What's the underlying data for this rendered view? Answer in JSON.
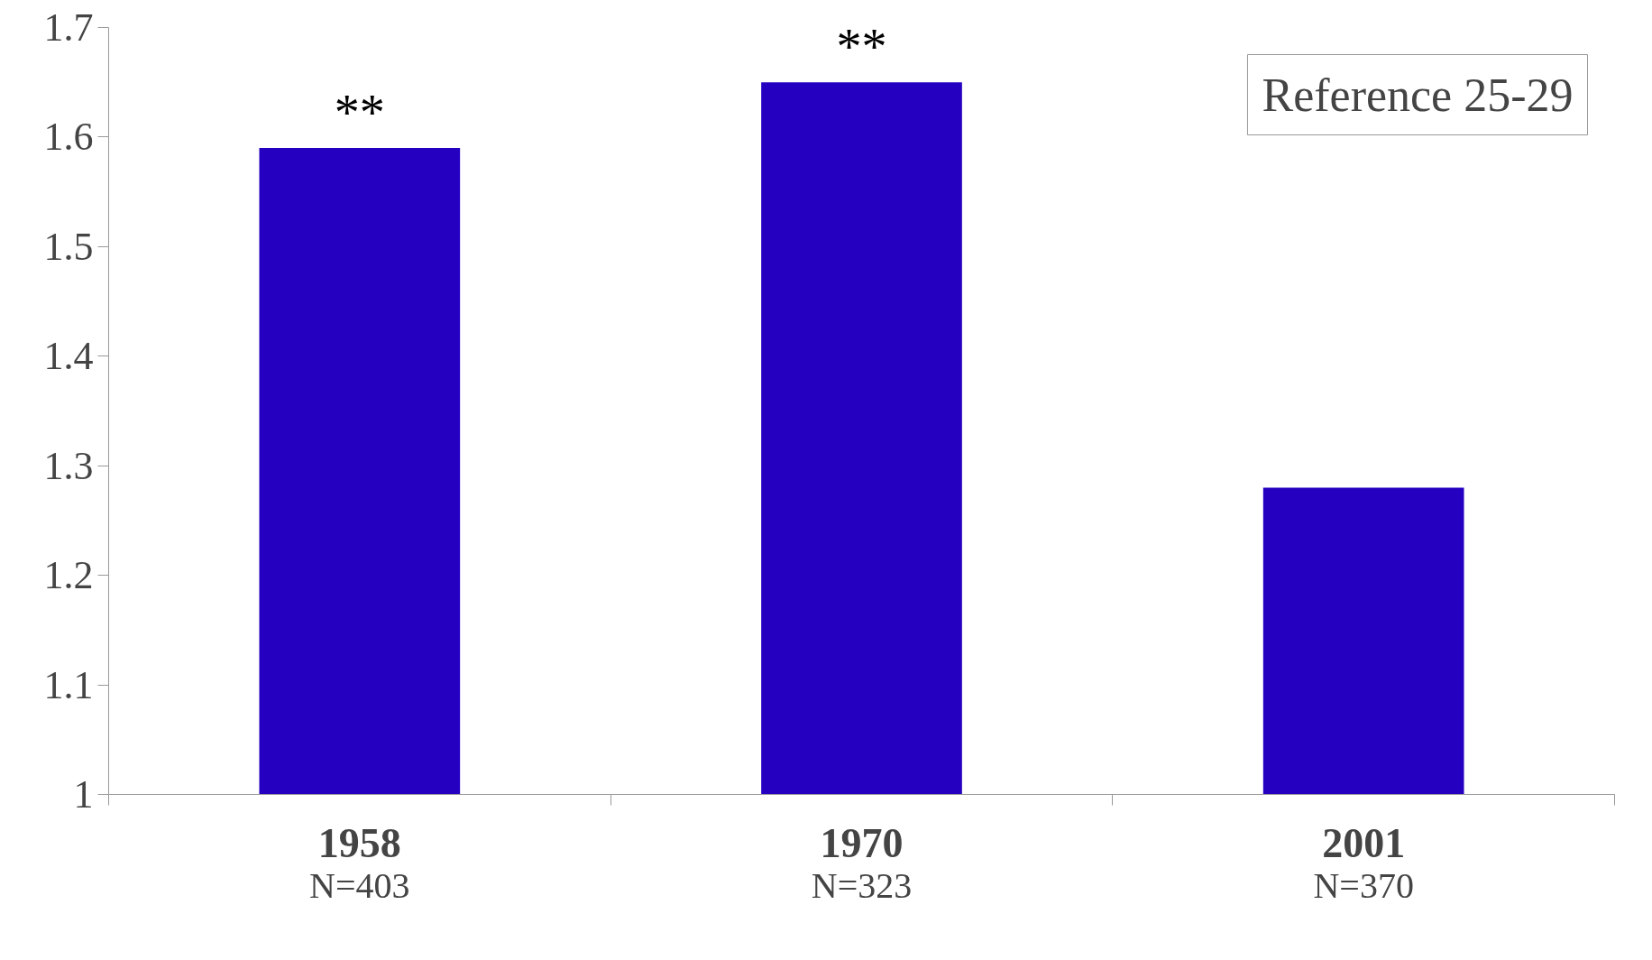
{
  "chart_data": {
    "type": "bar",
    "categories": [
      "1958",
      "1970",
      "2001"
    ],
    "values": [
      1.59,
      1.65,
      1.28
    ],
    "color": "#2600c0",
    "ylim": [
      1,
      1.7
    ],
    "yticks": [
      1,
      1.1,
      1.2,
      1.3,
      1.4,
      1.5,
      1.6,
      1.7
    ],
    "grid": false,
    "value_labels": [
      "**",
      "**",
      null
    ],
    "annotations": [
      "N=403",
      "N=323",
      "N=370",
      "Reference 25-29"
    ]
  }
}
